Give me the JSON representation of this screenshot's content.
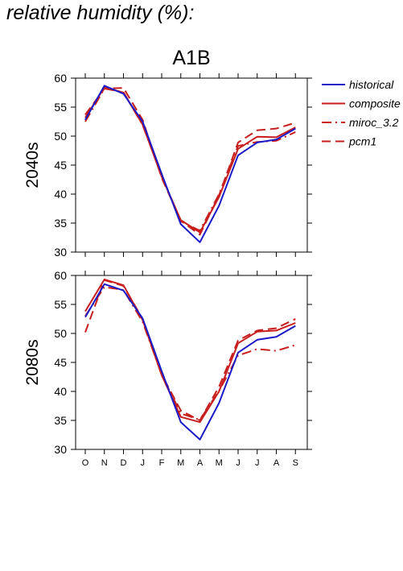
{
  "page": {
    "title": "relative humidity (%):"
  },
  "colors": {
    "historical": "#1a1ac8",
    "scenario": "#c81e1e",
    "axis": "#000000"
  },
  "chart_data": [
    {
      "type": "line",
      "title": "A1B",
      "ylabel": "2040s",
      "xlabel": "",
      "ylim": [
        30,
        60
      ],
      "yticks": [
        30,
        35,
        40,
        45,
        50,
        55,
        60
      ],
      "categories": [
        "O",
        "N",
        "D",
        "J",
        "F",
        "M",
        "A",
        "M",
        "J",
        "J",
        "A",
        "S"
      ],
      "grid": false,
      "legend_position": "right",
      "series": [
        {
          "name": "historical",
          "style": "solid",
          "color": "#1a1ac8",
          "values": [
            52.8,
            58.7,
            57.3,
            52.5,
            43.5,
            34.8,
            31.7,
            38.0,
            46.7,
            48.9,
            49.4,
            51.3
          ]
        },
        {
          "name": "composite",
          "style": "solid",
          "color": "#c81e1e",
          "values": [
            53.2,
            58.4,
            57.5,
            52.0,
            43.0,
            35.5,
            33.4,
            39.5,
            47.8,
            49.9,
            49.8,
            51.5
          ]
        },
        {
          "name": "miroc_3.2",
          "style": "dashdot",
          "color": "#c81e1e",
          "values": [
            52.5,
            58.2,
            57.6,
            51.9,
            43.2,
            35.3,
            33.7,
            40.0,
            48.3,
            49.0,
            49.2,
            50.7
          ]
        },
        {
          "name": "pcm1",
          "style": "dashed",
          "color": "#c81e1e",
          "values": [
            53.7,
            58.2,
            58.3,
            52.8,
            42.8,
            35.4,
            33.0,
            39.8,
            48.9,
            51.0,
            51.3,
            52.3
          ]
        }
      ]
    },
    {
      "type": "line",
      "title": "",
      "ylabel": "2080s",
      "xlabel": "",
      "ylim": [
        30,
        60
      ],
      "yticks": [
        30,
        35,
        40,
        45,
        50,
        55,
        60
      ],
      "categories": [
        "O",
        "N",
        "D",
        "J",
        "F",
        "M",
        "A",
        "M",
        "J",
        "J",
        "A",
        "S"
      ],
      "grid": false,
      "series": [
        {
          "name": "historical",
          "style": "solid",
          "color": "#1a1ac8",
          "values": [
            52.8,
            58.5,
            57.4,
            52.6,
            43.5,
            34.7,
            31.7,
            38.0,
            46.7,
            48.9,
            49.4,
            51.3
          ]
        },
        {
          "name": "composite",
          "style": "solid",
          "color": "#c81e1e",
          "values": [
            53.8,
            59.3,
            58.3,
            52.3,
            42.8,
            35.6,
            34.7,
            40.0,
            48.3,
            50.3,
            50.5,
            51.8
          ]
        },
        {
          "name": "miroc_3.2",
          "style": "dashdot",
          "color": "#c81e1e",
          "values": [
            53.0,
            58.0,
            57.5,
            52.0,
            42.9,
            36.2,
            35.1,
            40.1,
            46.2,
            47.3,
            47.0,
            48.0
          ]
        },
        {
          "name": "pcm1",
          "style": "dashed",
          "color": "#c81e1e",
          "values": [
            50.2,
            59.2,
            58.2,
            52.5,
            42.9,
            36.7,
            35.0,
            40.8,
            48.8,
            50.5,
            50.9,
            52.5
          ]
        }
      ]
    }
  ]
}
